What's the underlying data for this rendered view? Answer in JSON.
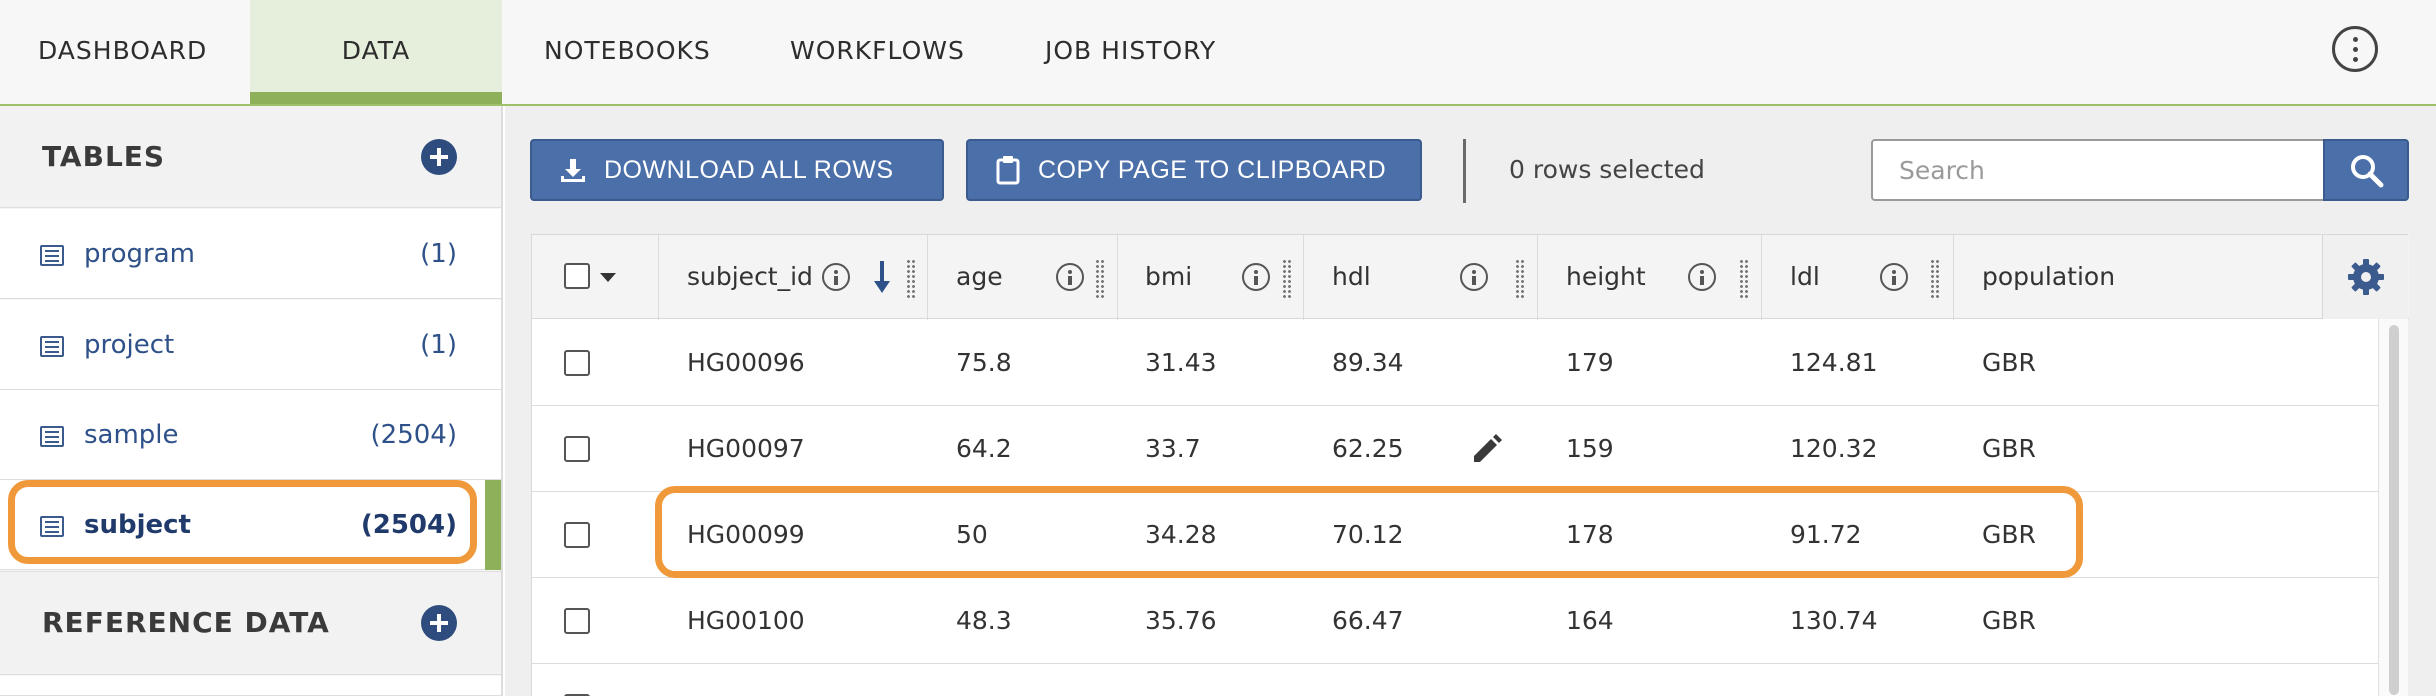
{
  "nav": {
    "tabs": [
      {
        "label": "DASHBOARD"
      },
      {
        "label": "DATA"
      },
      {
        "label": "NOTEBOOKS"
      },
      {
        "label": "WORKFLOWS"
      },
      {
        "label": "JOB HISTORY"
      }
    ],
    "active_tab": "DATA",
    "menu_icon": "kebab-menu-icon"
  },
  "sidebar": {
    "tables_title": "TABLES",
    "tables": [
      {
        "name": "program",
        "count": "(1)"
      },
      {
        "name": "project",
        "count": "(1)"
      },
      {
        "name": "sample",
        "count": "(2504)"
      },
      {
        "name": "subject",
        "count": "(2504)"
      }
    ],
    "selected_table": "subject",
    "reference_title": "REFERENCE DATA",
    "accent_color": "#8eb05a",
    "highlight_color": "#f0993a"
  },
  "toolbar": {
    "download_label": "DOWNLOAD ALL ROWS",
    "copy_label": "COPY PAGE TO CLIPBOARD",
    "rows_selected": "0 rows selected",
    "search_placeholder": "Search",
    "search_value": "",
    "button_color": "#4b6fa8"
  },
  "table": {
    "columns": [
      "subject_id",
      "age",
      "bmi",
      "hdl",
      "height",
      "ldl",
      "population"
    ],
    "sort_column": "subject_id",
    "sort_direction": "descending-arrow",
    "rows": [
      [
        "HG00096",
        "75.8",
        "31.43",
        "89.34",
        "179",
        "124.81",
        "GBR"
      ],
      [
        "HG00097",
        "64.2",
        "33.7",
        "62.25",
        "159",
        "120.32",
        "GBR"
      ],
      [
        "HG00099",
        "50",
        "34.28",
        "70.12",
        "178",
        "91.72",
        "GBR"
      ],
      [
        "HG00100",
        "48.3",
        "35.76",
        "66.47",
        "164",
        "130.74",
        "GBR"
      ]
    ],
    "highlighted_row": "HG00099",
    "edit_icon_row": "HG00097"
  }
}
